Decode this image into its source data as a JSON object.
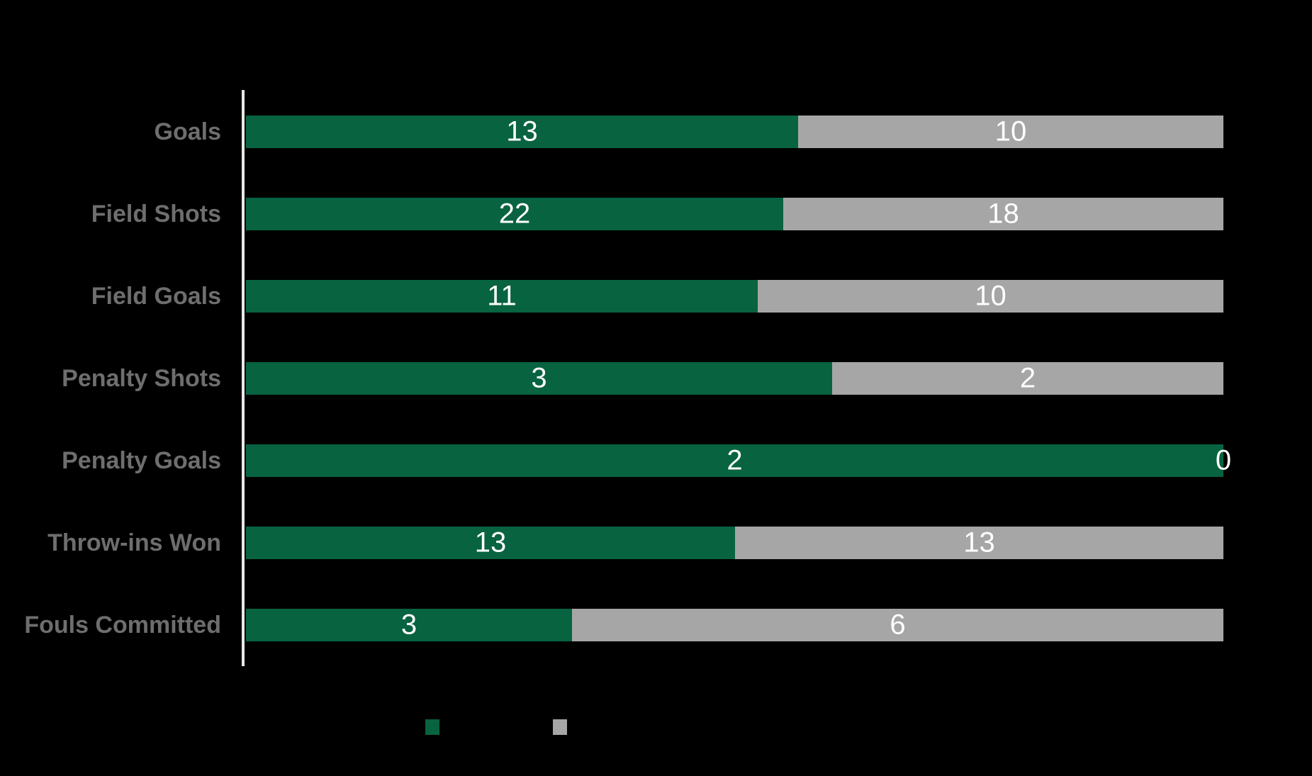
{
  "background_color": "#000000",
  "chart_data": {
    "type": "bar",
    "orientation": "horizontal",
    "stacked": true,
    "normalized": "each row scaled to full track width (100% stacked)",
    "categories": [
      "Goals",
      "Field Shots",
      "Field Goals",
      "Penalty Shots",
      "Penalty Goals",
      "Throw-ins Won",
      "Fouls Committed"
    ],
    "series": [
      {
        "name": "green-series",
        "color": "#086341",
        "values": [
          13,
          22,
          11,
          3,
          2,
          13,
          3
        ]
      },
      {
        "name": "gray-series",
        "color": "#A6A6A6",
        "values": [
          10,
          18,
          10,
          2,
          0,
          13,
          6
        ]
      }
    ],
    "value_label_color": "#FFFFFF",
    "category_label_color": "#6E6E6E",
    "axis_line_color": "#E8E8E8",
    "grid": false,
    "legend": {
      "position": "bottom-center",
      "items": [
        {
          "swatch_color": "#086341",
          "label": ""
        },
        {
          "swatch_color": "#A6A6A6",
          "label": ""
        }
      ]
    }
  }
}
